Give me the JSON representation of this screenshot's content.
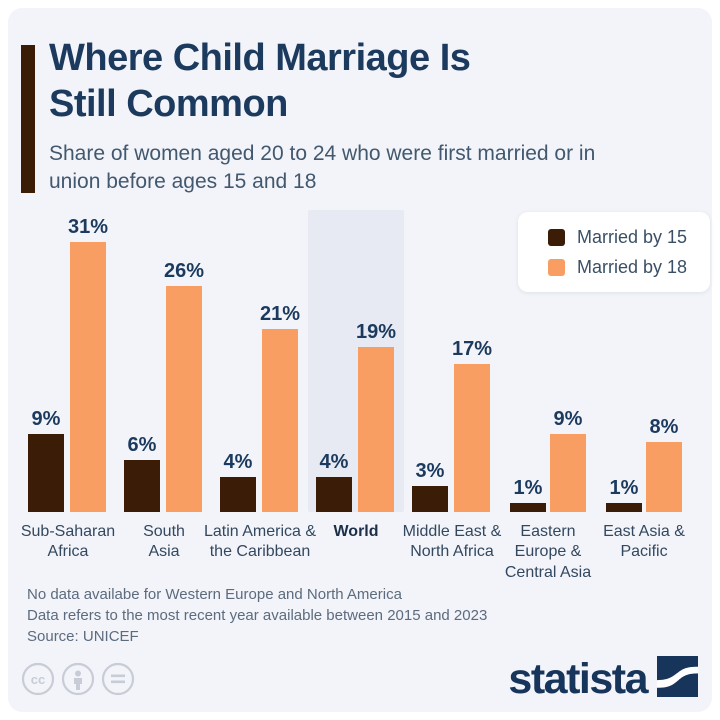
{
  "header": {
    "title": "Where Child Marriage Is Still Common",
    "subtitle": "Share of women aged 20 to 24 who were first married or in union before ages 15 and 18"
  },
  "legend": {
    "items": [
      {
        "label": "Married by 15",
        "color": "#3a1c07"
      },
      {
        "label": "Married by 18",
        "color": "#f99e63"
      }
    ]
  },
  "chart_data": {
    "type": "bar",
    "unit": "%",
    "categories": [
      "Sub-Saharan Africa",
      "South Asia",
      "Latin America & the Caribbean",
      "World",
      "Middle East & North Africa",
      "Eastern Europe & Central Asia",
      "East Asia & Pacific"
    ],
    "category_labels": [
      "Sub-Saharan\nAfrica",
      "South\nAsia",
      "Latin America &\nthe Caribbean",
      "World",
      "Middle East &\nNorth Africa",
      "Eastern\nEurope &\nCentral Asia",
      "East Asia &\nPacific"
    ],
    "series": [
      {
        "name": "Married by 15",
        "color": "#3a1c07",
        "values": [
          9,
          6,
          4,
          4,
          3,
          1,
          1
        ]
      },
      {
        "name": "Married by 18",
        "color": "#f99e63",
        "values": [
          31,
          26,
          21,
          19,
          17,
          9,
          8
        ]
      }
    ],
    "highlighted_category": "World",
    "highlight_color": "#e7eaf3",
    "ylim": [
      0,
      31
    ],
    "grid": false,
    "value_labels": true,
    "legend_position": "top-right"
  },
  "footnotes": {
    "line1": "No data availabe for Western Europe and North America",
    "line2": "Data refers to the most recent year available between 2015 and 2023",
    "source": "Source: UNICEF"
  },
  "branding": {
    "logo_text": "statista",
    "license_icons": [
      "cc-icon",
      "attribution-icon",
      "equals-icon"
    ]
  },
  "colors": {
    "card_background": "#f2f4f9",
    "title": "#1b3a5e",
    "subtitle": "#42586e",
    "accent_bar": "#3a1c07",
    "bar_married_15": "#3a1c07",
    "bar_married_18": "#f99e63",
    "value_label": "#1b3a5e",
    "category_label": "#33485f",
    "footnote": "#5c6b7e",
    "brand_navy": "#17345a",
    "license_gray": "#c7ccd6"
  }
}
